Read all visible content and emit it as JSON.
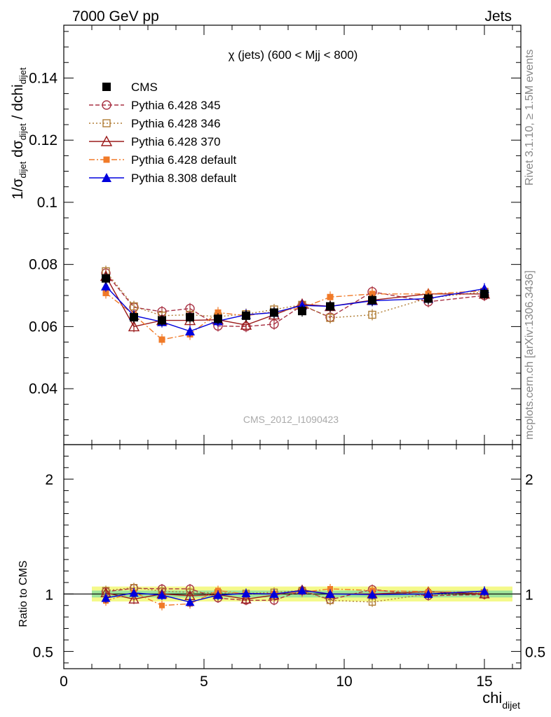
{
  "header": {
    "left": "7000 GeV pp",
    "right": "Jets"
  },
  "side": {
    "rivet": "Rivet 3.1.10, ≥ 1.5M events",
    "mcplots": "mcplots.cern.ch [arXiv:1306.3436]"
  },
  "watermark": "CMS_2012_I1090423",
  "colors": {
    "CMS": "#000000",
    "P345": "#a83244",
    "P346": "#b07d35",
    "P370": "#9b1c1c",
    "P6def": "#f07a28",
    "P8def": "#0000dd"
  },
  "chart_data": [
    {
      "type": "line",
      "title": "χ (jets) (600 < Mjj <  800)",
      "ylabel_main": "1/σ",
      "ylabel_sub1": "dijet",
      "ylabel_mid": " dσ",
      "ylabel_sub2": "dijet",
      "ylabel_tail": " / dchi",
      "ylabel_sub3": "dijet",
      "xlabel_main": "chi",
      "xlabel_sub": "dijet",
      "xlim": [
        0,
        16.3
      ],
      "ylim": [
        0.022,
        0.157
      ],
      "yticks": [
        "0.04",
        "0.06",
        "0.08",
        "0.1",
        "0.12",
        "0.14"
      ],
      "x": [
        1.5,
        2.5,
        3.5,
        4.5,
        5.5,
        6.5,
        7.5,
        8.5,
        9.5,
        11,
        13,
        15
      ],
      "series": [
        {
          "name": "CMS",
          "marker": "square-filled",
          "values": [
            0.0755,
            0.063,
            0.062,
            0.063,
            0.0625,
            0.0635,
            0.0645,
            0.065,
            0.0665,
            0.0685,
            0.069,
            0.0705
          ]
        },
        {
          "name": "Pythia 6.428 345",
          "marker": "circle-open",
          "values": [
            0.0772,
            0.0662,
            0.0648,
            0.0658,
            0.0602,
            0.06,
            0.0608,
            0.0668,
            0.063,
            0.0712,
            0.068,
            0.07
          ]
        },
        {
          "name": "Pythia 6.428 346",
          "marker": "square-open",
          "values": [
            0.0778,
            0.0665,
            0.0635,
            0.0638,
            0.0632,
            0.064,
            0.0655,
            0.067,
            0.0628,
            0.0638,
            0.0692,
            0.0712
          ]
        },
        {
          "name": "Pythia 6.428 370",
          "marker": "triangle-open",
          "values": [
            0.0762,
            0.06,
            0.062,
            0.062,
            0.0622,
            0.0605,
            0.0638,
            0.0672,
            0.0665,
            0.0685,
            0.0705,
            0.0705
          ]
        },
        {
          "name": "Pythia 6.428 default",
          "marker": "square-filled-small",
          "values": [
            0.0708,
            0.0638,
            0.0558,
            0.0575,
            0.0645,
            0.0635,
            0.0648,
            0.066,
            0.0695,
            0.0705,
            0.0705,
            0.0715
          ]
        },
        {
          "name": "Pythia 8.308 default",
          "marker": "triangle-filled",
          "values": [
            0.073,
            0.0635,
            0.0615,
            0.0585,
            0.0618,
            0.0638,
            0.0645,
            0.0668,
            0.0665,
            0.0683,
            0.069,
            0.0722
          ]
        }
      ]
    },
    {
      "type": "line",
      "ylabel": "Ratio to CMS",
      "ylim": [
        0.35,
        2.3
      ],
      "yticks": [
        "0.5",
        "1",
        "2"
      ],
      "xticks": [
        "0",
        "5",
        "10",
        "15"
      ],
      "band_inner": 0.03,
      "band_outer": 0.065,
      "series": [
        {
          "name": "Pythia 6.428 345",
          "values": [
            1.02,
            1.05,
            1.045,
            1.045,
            0.965,
            0.945,
            0.945,
            1.03,
            0.95,
            1.04,
            0.985,
            0.995
          ]
        },
        {
          "name": "Pythia 6.428 346",
          "values": [
            1.03,
            1.055,
            1.025,
            1.015,
            1.01,
            1.005,
            1.015,
            1.03,
            0.945,
            0.93,
            1.0,
            1.01
          ]
        },
        {
          "name": "Pythia 6.428 370",
          "values": [
            1.01,
            0.955,
            1.0,
            0.985,
            0.995,
            0.955,
            0.99,
            1.035,
            1.0,
            1.0,
            1.02,
            1.0
          ]
        },
        {
          "name": "Pythia 6.428 default",
          "values": [
            0.94,
            1.015,
            0.9,
            0.915,
            1.03,
            1.0,
            1.005,
            1.015,
            1.045,
            1.03,
            1.02,
            1.015
          ]
        },
        {
          "name": "Pythia 8.308 default",
          "values": [
            0.965,
            1.01,
            0.99,
            0.93,
            0.99,
            1.005,
            1.0,
            1.03,
            1.0,
            0.995,
            1.0,
            1.025
          ]
        }
      ]
    }
  ]
}
